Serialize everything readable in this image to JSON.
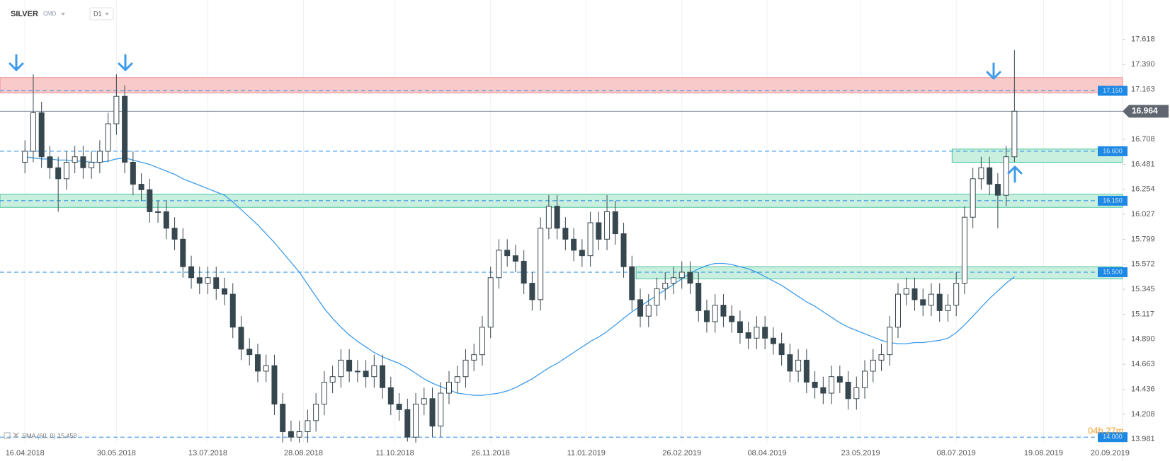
{
  "chart_data": {
    "type": "candlestick",
    "symbol": "SILVER",
    "market": "CMD",
    "interval": "D1",
    "countdown": "04h 27m",
    "xlim": [
      -12,
      528
    ],
    "ylim": [
      13.95,
      17.77
    ],
    "grid": true,
    "up_color": "#ffffff",
    "down_color": "#37474f",
    "xticks": [
      {
        "value": 0,
        "label": "16.04.2018"
      },
      {
        "value": 44,
        "label": "30.05.2018"
      },
      {
        "value": 88,
        "label": "13.07.2018"
      },
      {
        "value": 134,
        "label": "28.08.2018"
      },
      {
        "value": 178,
        "label": "11.10.2018"
      },
      {
        "value": 224,
        "label": "26.11.2018"
      },
      {
        "value": 270,
        "label": "11.01.2019"
      },
      {
        "value": 316,
        "label": "26.02.2019"
      },
      {
        "value": 357,
        "label": "08.04.2019"
      },
      {
        "value": 402,
        "label": "23.05.2019"
      },
      {
        "value": 448,
        "label": "08.07.2019"
      },
      {
        "value": 490,
        "label": "19.08.2019"
      },
      {
        "value": 522,
        "label": "20.09.2019"
      }
    ],
    "yticks": [
      17.618,
      {
        "value": 17.39,
        "label": "17.390"
      },
      17.163,
      16.708,
      16.481,
      16.254,
      16.027,
      15.799,
      15.572,
      15.345,
      15.117,
      {
        "value": 14.89,
        "label": "14.890"
      },
      14.663,
      14.436,
      14.208,
      13.981
    ],
    "x": [
      0,
      4,
      8,
      12,
      16,
      20,
      24,
      28,
      32,
      36,
      40,
      44,
      48,
      52,
      56,
      60,
      64,
      68,
      72,
      76,
      80,
      84,
      88,
      92,
      96,
      100,
      104,
      108,
      112,
      116,
      120,
      124,
      128,
      132,
      136,
      140,
      144,
      148,
      152,
      156,
      160,
      164,
      168,
      172,
      176,
      180,
      184,
      188,
      192,
      196,
      200,
      204,
      208,
      212,
      216,
      220,
      224,
      228,
      232,
      236,
      240,
      244,
      248,
      252,
      256,
      260,
      264,
      268,
      272,
      276,
      280,
      284,
      288,
      292,
      296,
      300,
      304,
      308,
      312,
      316,
      320,
      324,
      328,
      332,
      336,
      340,
      344,
      348,
      352,
      356,
      360,
      364,
      368,
      372,
      376,
      380,
      384,
      388,
      392,
      396,
      400,
      404,
      408,
      412,
      416,
      420,
      424,
      428,
      432,
      436,
      440,
      444,
      448,
      452,
      456,
      460,
      464,
      468,
      472,
      476
    ],
    "open": [
      16.5,
      16.6,
      16.95,
      16.55,
      16.45,
      16.35,
      16.5,
      16.55,
      16.45,
      16.5,
      16.6,
      16.85,
      17.1,
      16.5,
      16.3,
      16.25,
      16.05,
      16.05,
      15.9,
      15.8,
      15.55,
      15.45,
      15.4,
      15.45,
      15.35,
      15.3,
      15.0,
      14.8,
      14.75,
      14.6,
      14.65,
      14.3,
      14.05,
      14.0,
      14.05,
      14.15,
      14.3,
      14.5,
      14.55,
      14.7,
      14.6,
      14.6,
      14.55,
      14.65,
      14.45,
      14.3,
      14.25,
      14.0,
      14.3,
      14.35,
      14.1,
      14.4,
      14.5,
      14.55,
      14.7,
      14.75,
      15.0,
      15.45,
      15.7,
      15.65,
      15.6,
      15.4,
      15.25,
      15.9,
      16.1,
      15.9,
      15.8,
      15.7,
      15.65,
      15.95,
      15.8,
      16.05,
      15.85,
      15.55,
      15.25,
      15.1,
      15.2,
      15.35,
      15.4,
      15.45,
      15.5,
      15.4,
      15.15,
      15.05,
      15.2,
      15.1,
      15.05,
      14.95,
      14.9,
      15.0,
      14.9,
      14.85,
      14.75,
      14.6,
      14.7,
      14.5,
      14.45,
      14.4,
      14.55,
      14.5,
      14.35,
      14.45,
      14.6,
      14.7,
      14.75,
      15.0,
      15.3,
      15.35,
      15.25,
      15.2,
      15.3,
      15.15,
      15.2,
      15.4,
      16.0,
      16.35,
      16.45,
      16.3,
      16.2,
      16.55
    ],
    "high": [
      16.7,
      17.3,
      17.05,
      16.65,
      16.55,
      16.6,
      16.65,
      16.65,
      16.6,
      16.7,
      16.95,
      17.3,
      17.2,
      16.6,
      16.4,
      16.35,
      16.15,
      16.15,
      16.0,
      15.9,
      15.65,
      15.55,
      15.55,
      15.55,
      15.45,
      15.4,
      15.1,
      14.9,
      14.85,
      14.75,
      14.75,
      14.4,
      14.15,
      14.15,
      14.25,
      14.4,
      14.6,
      14.65,
      14.8,
      14.8,
      14.7,
      14.7,
      14.75,
      14.75,
      14.55,
      14.4,
      14.35,
      14.4,
      14.45,
      14.45,
      14.5,
      14.6,
      14.65,
      14.8,
      14.85,
      15.1,
      15.55,
      15.8,
      15.8,
      15.75,
      15.7,
      15.5,
      16.0,
      16.2,
      16.2,
      16.0,
      15.9,
      15.8,
      16.05,
      16.05,
      16.2,
      16.15,
      15.95,
      15.65,
      15.35,
      15.3,
      15.45,
      15.5,
      15.55,
      15.6,
      15.6,
      15.5,
      15.25,
      15.3,
      15.3,
      15.2,
      15.15,
      15.05,
      15.1,
      15.1,
      15.0,
      14.95,
      14.85,
      14.8,
      14.8,
      14.6,
      14.55,
      14.65,
      14.65,
      14.6,
      14.55,
      14.7,
      14.8,
      14.85,
      15.1,
      15.4,
      15.45,
      15.45,
      15.35,
      15.4,
      15.4,
      15.3,
      15.5,
      16.1,
      16.45,
      16.55,
      16.55,
      16.4,
      16.65,
      17.52
    ],
    "low": [
      16.4,
      16.5,
      16.45,
      16.35,
      16.05,
      16.25,
      16.4,
      16.35,
      16.35,
      16.4,
      16.5,
      16.75,
      16.4,
      16.2,
      16.15,
      15.95,
      15.95,
      15.8,
      15.7,
      15.45,
      15.35,
      15.3,
      15.3,
      15.25,
      15.2,
      14.9,
      14.7,
      14.65,
      14.5,
      14.5,
      14.2,
      13.95,
      13.96,
      13.95,
      13.95,
      14.05,
      14.2,
      14.4,
      14.45,
      14.5,
      14.5,
      14.45,
      14.45,
      14.35,
      14.2,
      14.15,
      13.96,
      13.95,
      14.2,
      14.0,
      14.0,
      14.3,
      14.4,
      14.45,
      14.6,
      14.65,
      14.9,
      15.35,
      15.55,
      15.5,
      15.3,
      15.15,
      15.15,
      15.8,
      15.8,
      15.7,
      15.6,
      15.55,
      15.55,
      15.7,
      15.7,
      15.75,
      15.45,
      15.15,
      15.0,
      15.0,
      15.1,
      15.25,
      15.3,
      15.35,
      15.3,
      15.05,
      14.95,
      14.95,
      15.0,
      14.95,
      14.85,
      14.8,
      14.8,
      14.8,
      14.75,
      14.65,
      14.5,
      14.5,
      14.4,
      14.35,
      14.3,
      14.3,
      14.4,
      14.25,
      14.25,
      14.35,
      14.5,
      14.6,
      14.65,
      14.9,
      15.2,
      15.15,
      15.1,
      15.1,
      15.05,
      15.05,
      15.1,
      15.3,
      15.9,
      16.25,
      16.2,
      15.9,
      16.1,
      16.5
    ],
    "close": [
      16.6,
      16.95,
      16.55,
      16.45,
      16.35,
      16.5,
      16.55,
      16.45,
      16.5,
      16.6,
      16.85,
      17.1,
      16.5,
      16.3,
      16.25,
      16.05,
      16.05,
      15.9,
      15.8,
      15.55,
      15.45,
      15.4,
      15.45,
      15.35,
      15.3,
      15.0,
      14.8,
      14.75,
      14.6,
      14.65,
      14.3,
      14.05,
      14.0,
      14.05,
      14.15,
      14.3,
      14.5,
      14.55,
      14.7,
      14.6,
      14.6,
      14.55,
      14.65,
      14.45,
      14.3,
      14.25,
      14.0,
      14.3,
      14.35,
      14.1,
      14.4,
      14.5,
      14.55,
      14.7,
      14.75,
      15.0,
      15.45,
      15.7,
      15.65,
      15.6,
      15.4,
      15.25,
      15.9,
      16.1,
      15.9,
      15.8,
      15.7,
      15.65,
      15.95,
      15.8,
      16.05,
      15.85,
      15.55,
      15.25,
      15.1,
      15.2,
      15.35,
      15.4,
      15.45,
      15.5,
      15.4,
      15.15,
      15.05,
      15.2,
      15.1,
      15.05,
      14.95,
      14.9,
      15.0,
      14.9,
      14.85,
      14.75,
      14.6,
      14.7,
      14.5,
      14.45,
      14.4,
      14.55,
      14.5,
      14.35,
      14.45,
      14.6,
      14.7,
      14.75,
      15.0,
      15.3,
      15.35,
      15.25,
      15.2,
      15.3,
      15.15,
      15.2,
      15.4,
      16.0,
      16.35,
      16.45,
      16.3,
      16.2,
      16.55,
      16.964
    ],
    "sma": {
      "name": "SMA (60, 0) 15.459",
      "color": "#3d9be9",
      "values": [
        16.55,
        16.54,
        16.53,
        16.53,
        16.52,
        16.52,
        16.51,
        16.51,
        16.5,
        16.5,
        16.51,
        16.53,
        16.54,
        16.52,
        16.5,
        16.48,
        16.45,
        16.42,
        16.39,
        16.35,
        16.32,
        16.29,
        16.26,
        16.23,
        16.2,
        16.14,
        16.07,
        16.0,
        15.93,
        15.85,
        15.77,
        15.68,
        15.59,
        15.5,
        15.39,
        15.28,
        15.17,
        15.08,
        15.0,
        14.93,
        14.87,
        14.82,
        14.77,
        14.73,
        14.7,
        14.67,
        14.63,
        14.58,
        14.53,
        14.49,
        14.46,
        14.43,
        14.4,
        14.39,
        14.38,
        14.38,
        14.39,
        14.4,
        14.42,
        14.45,
        14.49,
        14.53,
        14.58,
        14.63,
        14.67,
        14.72,
        14.77,
        14.82,
        14.87,
        14.91,
        14.96,
        15.02,
        15.08,
        15.14,
        15.19,
        15.24,
        15.29,
        15.34,
        15.39,
        15.44,
        15.49,
        15.53,
        15.56,
        15.58,
        15.58,
        15.57,
        15.55,
        15.53,
        15.5,
        15.46,
        15.42,
        15.38,
        15.33,
        15.28,
        15.23,
        15.19,
        15.14,
        15.09,
        15.04,
        15.0,
        14.97,
        14.94,
        14.91,
        14.88,
        14.86,
        14.85,
        14.85,
        14.86,
        14.86,
        14.87,
        14.88,
        14.9,
        14.95,
        15.02,
        15.1,
        15.18,
        15.26,
        15.33,
        15.4,
        15.459
      ]
    },
    "zones": [
      {
        "from": 17.13,
        "to": 17.27,
        "color": "#f9caca",
        "stroke": "#ef8f8f"
      },
      {
        "from": 16.5,
        "to": 16.62,
        "start": 446,
        "color": "#c9efdf",
        "stroke": "#4cc79c"
      },
      {
        "from": 16.09,
        "to": 16.21,
        "color": "#c9efdf",
        "stroke": "#4cc79c"
      },
      {
        "from": 15.44,
        "to": 15.55,
        "start": 294,
        "color": "#c9efdf",
        "stroke": "#4cc79c"
      }
    ],
    "levels": [
      {
        "value": 17.15,
        "label": "17.150"
      },
      {
        "value": 16.6,
        "label": "16.600"
      },
      {
        "value": 16.15,
        "label": "16.150"
      },
      {
        "value": 15.5,
        "label": "15.500"
      },
      {
        "value": 14.0,
        "label": "14.000"
      }
    ],
    "level_color": "#1e88e5",
    "last": 16.964
  }
}
